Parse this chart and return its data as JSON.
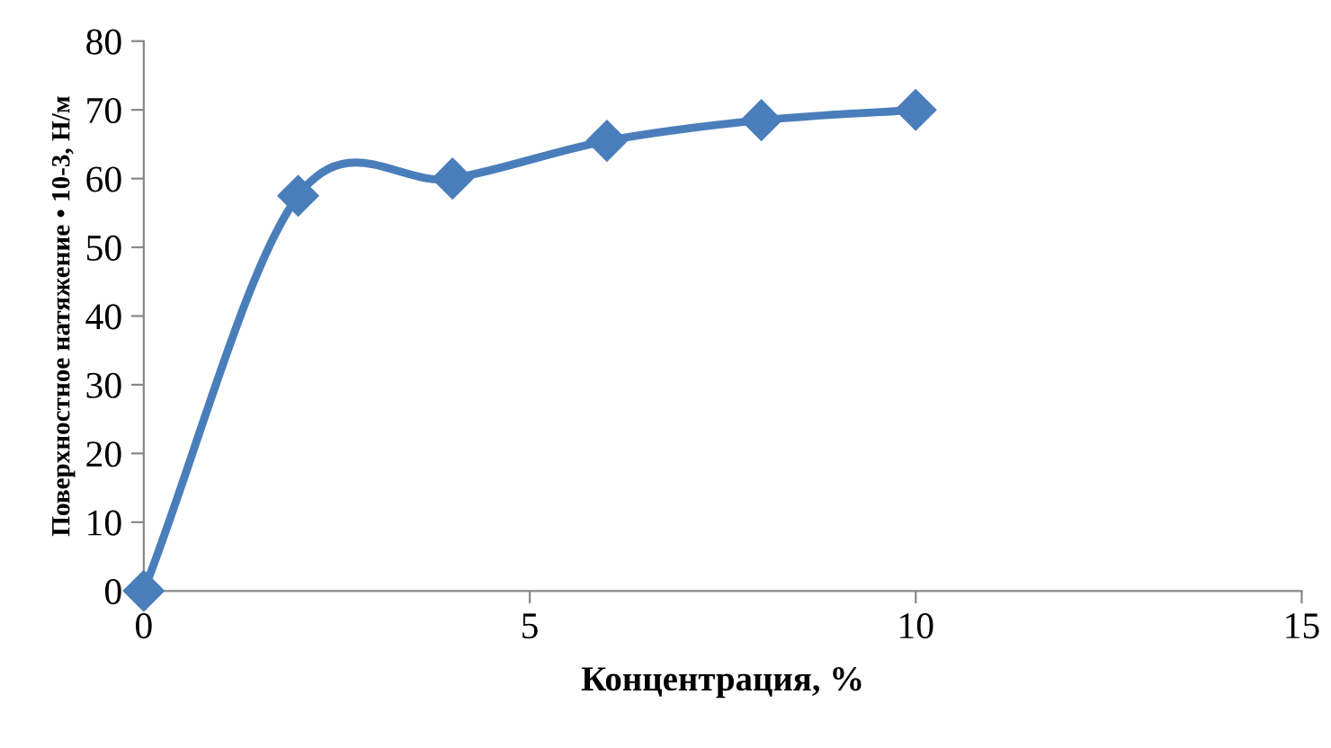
{
  "chart_data": {
    "type": "line",
    "xlabel": "Концентрация, %",
    "ylabel": "Поверхностное натяжение • 10-3, Н/м",
    "series": [
      {
        "color": "#4a7ebb",
        "x": [
          0,
          2,
          4,
          6,
          8,
          10
        ],
        "values": [
          0,
          57.5,
          60,
          65.5,
          68.5,
          70
        ]
      }
    ],
    "xlim": [
      0,
      15
    ],
    "xticks": [
      0,
      5,
      10,
      15
    ],
    "ylim": [
      0,
      80
    ],
    "yticks": [
      0,
      10,
      20,
      30,
      40,
      50,
      60,
      70,
      80
    ],
    "grid": false,
    "legend": false,
    "marker": "diamond",
    "line_style": "solid"
  }
}
